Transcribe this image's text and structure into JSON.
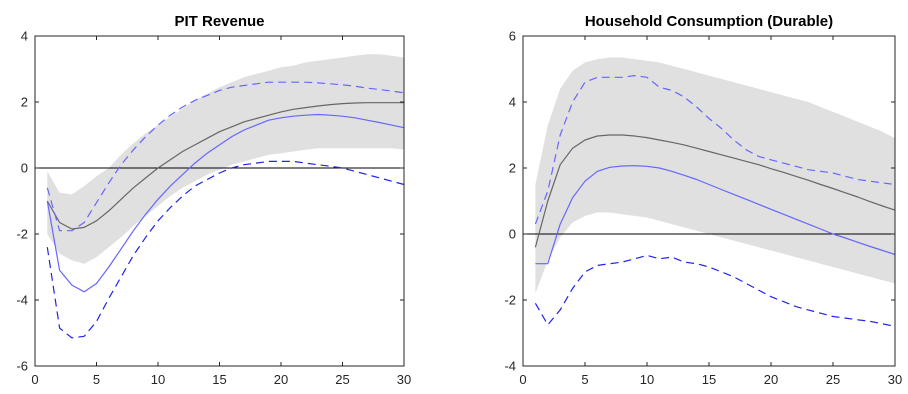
{
  "chart_data": [
    {
      "type": "line",
      "title": "PIT Revenue",
      "xlabel": "",
      "ylabel": "",
      "xlim": [
        0,
        30
      ],
      "ylim": [
        -6,
        4
      ],
      "xticks": [
        0,
        5,
        10,
        15,
        20,
        25,
        30
      ],
      "yticks": [
        -6,
        -4,
        -2,
        0,
        2,
        4
      ],
      "grid": false,
      "zero_line": true,
      "band": {
        "color": "#e0e0e0",
        "x": [
          1,
          2,
          3,
          4,
          5,
          6,
          7,
          8,
          9,
          10,
          11,
          12,
          13,
          14,
          15,
          16,
          17,
          18,
          19,
          20,
          21,
          22,
          23,
          24,
          25,
          26,
          27,
          28,
          29,
          30
        ],
        "upper": [
          -0.1,
          -0.75,
          -0.8,
          -0.55,
          -0.25,
          0.0,
          0.4,
          0.75,
          1.05,
          1.3,
          1.55,
          1.8,
          2.05,
          2.25,
          2.45,
          2.6,
          2.75,
          2.85,
          2.95,
          3.05,
          3.1,
          3.2,
          3.25,
          3.3,
          3.35,
          3.4,
          3.45,
          3.45,
          3.4,
          3.35
        ],
        "lower": [
          -2.0,
          -2.6,
          -2.8,
          -2.9,
          -2.7,
          -2.4,
          -2.1,
          -1.75,
          -1.45,
          -1.15,
          -0.85,
          -0.6,
          -0.4,
          -0.2,
          -0.05,
          0.1,
          0.2,
          0.3,
          0.4,
          0.45,
          0.5,
          0.55,
          0.6,
          0.6,
          0.6,
          0.6,
          0.6,
          0.6,
          0.6,
          0.55
        ]
      },
      "series": [
        {
          "color": "#666666",
          "dash": "solid",
          "x": [
            1,
            2,
            3,
            4,
            5,
            6,
            7,
            8,
            9,
            10,
            11,
            12,
            13,
            14,
            15,
            16,
            17,
            18,
            19,
            20,
            21,
            22,
            23,
            24,
            25,
            26,
            27,
            28,
            29,
            30
          ],
          "values": [
            -1.0,
            -1.65,
            -1.85,
            -1.8,
            -1.6,
            -1.3,
            -0.95,
            -0.6,
            -0.3,
            0.0,
            0.25,
            0.5,
            0.7,
            0.9,
            1.1,
            1.25,
            1.4,
            1.5,
            1.6,
            1.7,
            1.78,
            1.83,
            1.88,
            1.92,
            1.95,
            1.97,
            1.98,
            1.98,
            1.98,
            1.98
          ]
        },
        {
          "color": "#6666ff",
          "dash": "solid",
          "x": [
            1,
            2,
            3,
            4,
            5,
            6,
            7,
            8,
            9,
            10,
            11,
            12,
            13,
            14,
            15,
            16,
            17,
            18,
            19,
            20,
            21,
            22,
            23,
            24,
            25,
            26,
            27,
            28,
            29,
            30
          ],
          "values": [
            -1.0,
            -3.1,
            -3.55,
            -3.75,
            -3.5,
            -3.0,
            -2.45,
            -1.9,
            -1.4,
            -0.95,
            -0.55,
            -0.2,
            0.15,
            0.45,
            0.7,
            0.95,
            1.15,
            1.3,
            1.45,
            1.52,
            1.57,
            1.6,
            1.62,
            1.6,
            1.57,
            1.52,
            1.45,
            1.38,
            1.3,
            1.22
          ]
        },
        {
          "color": "#6666ff",
          "dash": "dashed",
          "x": [
            1,
            2,
            3,
            4,
            5,
            6,
            7,
            8,
            9,
            10,
            11,
            12,
            13,
            14,
            15,
            16,
            17,
            18,
            19,
            20,
            21,
            22,
            23,
            24,
            25,
            26,
            27,
            28,
            29,
            30
          ],
          "values": [
            -0.6,
            -1.9,
            -1.9,
            -1.65,
            -1.05,
            -0.45,
            0.1,
            0.55,
            0.95,
            1.3,
            1.6,
            1.85,
            2.05,
            2.2,
            2.35,
            2.45,
            2.5,
            2.55,
            2.6,
            2.6,
            2.6,
            2.6,
            2.58,
            2.55,
            2.52,
            2.48,
            2.42,
            2.38,
            2.33,
            2.28
          ]
        },
        {
          "color": "#2222ee",
          "dash": "dashed",
          "x": [
            1,
            2,
            3,
            4,
            5,
            6,
            7,
            8,
            9,
            10,
            11,
            12,
            13,
            14,
            15,
            16,
            17,
            18,
            19,
            20,
            21,
            22,
            23,
            24,
            25,
            26,
            27,
            28,
            29,
            30
          ],
          "values": [
            -2.4,
            -4.85,
            -5.15,
            -5.1,
            -4.65,
            -3.95,
            -3.3,
            -2.65,
            -2.1,
            -1.6,
            -1.2,
            -0.85,
            -0.55,
            -0.35,
            -0.15,
            0.0,
            0.1,
            0.15,
            0.2,
            0.2,
            0.2,
            0.15,
            0.1,
            0.05,
            0.0,
            -0.1,
            -0.2,
            -0.3,
            -0.4,
            -0.5
          ]
        }
      ]
    },
    {
      "type": "line",
      "title": "Household Consumption (Durable)",
      "xlabel": "",
      "ylabel": "",
      "xlim": [
        0,
        30
      ],
      "ylim": [
        -4,
        6
      ],
      "xticks": [
        0,
        5,
        10,
        15,
        20,
        25,
        30
      ],
      "yticks": [
        -4,
        -2,
        0,
        2,
        4,
        6
      ],
      "grid": false,
      "zero_line": true,
      "band": {
        "color": "#e0e0e0",
        "x": [
          1,
          2,
          3,
          4,
          5,
          6,
          7,
          8,
          9,
          10,
          11,
          12,
          13,
          14,
          15,
          16,
          17,
          18,
          19,
          20,
          21,
          22,
          23,
          24,
          25,
          26,
          27,
          28,
          29,
          30
        ],
        "upper": [
          1.5,
          3.3,
          4.4,
          4.95,
          5.2,
          5.3,
          5.35,
          5.35,
          5.3,
          5.25,
          5.2,
          5.1,
          5.0,
          4.9,
          4.8,
          4.7,
          4.6,
          4.5,
          4.4,
          4.3,
          4.2,
          4.1,
          4.0,
          3.85,
          3.7,
          3.55,
          3.4,
          3.25,
          3.1,
          2.9
        ],
        "lower": [
          -1.8,
          -0.8,
          -0.1,
          0.35,
          0.55,
          0.65,
          0.65,
          0.6,
          0.55,
          0.5,
          0.4,
          0.3,
          0.2,
          0.1,
          0.0,
          -0.1,
          -0.2,
          -0.3,
          -0.4,
          -0.5,
          -0.6,
          -0.7,
          -0.8,
          -0.9,
          -1.0,
          -1.1,
          -1.2,
          -1.3,
          -1.4,
          -1.5
        ]
      },
      "series": [
        {
          "color": "#666666",
          "dash": "solid",
          "x": [
            1,
            2,
            3,
            4,
            5,
            6,
            7,
            8,
            9,
            10,
            11,
            12,
            13,
            14,
            15,
            16,
            17,
            18,
            19,
            20,
            21,
            22,
            23,
            24,
            25,
            26,
            27,
            28,
            29,
            30
          ],
          "values": [
            -0.4,
            1.0,
            2.1,
            2.6,
            2.85,
            2.97,
            3.0,
            3.0,
            2.97,
            2.92,
            2.85,
            2.78,
            2.7,
            2.6,
            2.5,
            2.4,
            2.3,
            2.2,
            2.1,
            1.98,
            1.87,
            1.75,
            1.63,
            1.5,
            1.38,
            1.25,
            1.12,
            0.98,
            0.85,
            0.72
          ]
        },
        {
          "color": "#6666ff",
          "dash": "solid",
          "x": [
            1,
            2,
            3,
            4,
            5,
            6,
            7,
            8,
            9,
            10,
            11,
            12,
            13,
            14,
            15,
            16,
            17,
            18,
            19,
            20,
            21,
            22,
            23,
            24,
            25,
            26,
            27,
            28,
            29,
            30
          ],
          "values": [
            -0.9,
            -0.9,
            0.3,
            1.1,
            1.6,
            1.9,
            2.02,
            2.06,
            2.07,
            2.05,
            2.0,
            1.9,
            1.78,
            1.65,
            1.5,
            1.35,
            1.2,
            1.05,
            0.9,
            0.75,
            0.6,
            0.45,
            0.3,
            0.15,
            0.0,
            -0.12,
            -0.25,
            -0.38,
            -0.5,
            -0.62
          ]
        },
        {
          "color": "#6666ff",
          "dash": "dashed",
          "x": [
            1,
            2,
            3,
            4,
            5,
            6,
            7,
            8,
            9,
            10,
            11,
            12,
            13,
            14,
            15,
            16,
            17,
            18,
            19,
            20,
            21,
            22,
            23,
            24,
            25,
            26,
            27,
            28,
            29,
            30
          ],
          "values": [
            0.3,
            1.3,
            3.0,
            4.0,
            4.6,
            4.75,
            4.75,
            4.75,
            4.8,
            4.75,
            4.45,
            4.35,
            4.15,
            3.85,
            3.5,
            3.2,
            2.85,
            2.55,
            2.35,
            2.25,
            2.15,
            2.05,
            1.95,
            1.9,
            1.85,
            1.75,
            1.65,
            1.6,
            1.55,
            1.5
          ]
        },
        {
          "color": "#2222ee",
          "dash": "dashed",
          "x": [
            1,
            2,
            3,
            4,
            5,
            6,
            7,
            8,
            9,
            10,
            11,
            12,
            13,
            14,
            15,
            16,
            17,
            18,
            19,
            20,
            21,
            22,
            23,
            24,
            25,
            26,
            27,
            28,
            29,
            30
          ],
          "values": [
            -2.1,
            -2.75,
            -2.3,
            -1.65,
            -1.15,
            -0.95,
            -0.9,
            -0.85,
            -0.75,
            -0.65,
            -0.75,
            -0.7,
            -0.85,
            -0.9,
            -1.0,
            -1.15,
            -1.3,
            -1.5,
            -1.7,
            -1.9,
            -2.05,
            -2.2,
            -2.3,
            -2.4,
            -2.5,
            -2.55,
            -2.6,
            -2.65,
            -2.72,
            -2.8
          ]
        }
      ]
    }
  ]
}
